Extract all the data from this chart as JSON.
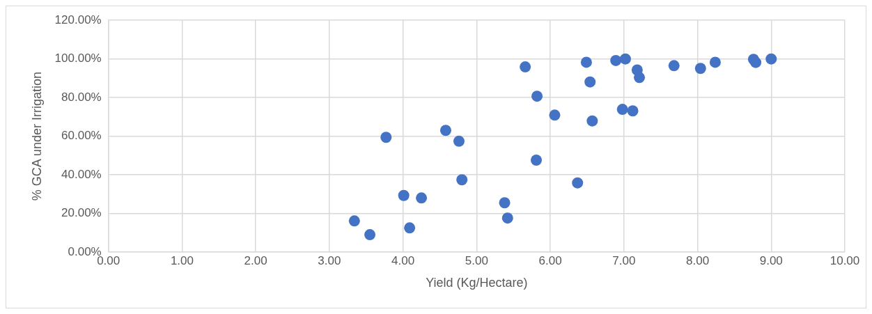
{
  "chart_data": {
    "type": "scatter",
    "xlabel": "Yield (Kg/Hectare)",
    "ylabel": "% GCA under Irrigation",
    "marker": "circle",
    "grid": true,
    "legend": false,
    "x": [
      3.34,
      3.55,
      3.77,
      4.01,
      4.25,
      4.09,
      4.58,
      4.76,
      4.8,
      5.66,
      5.82,
      5.81,
      6.06,
      5.38,
      5.42,
      6.37,
      6.49,
      6.54,
      6.57,
      6.89,
      7.02,
      6.98,
      7.12,
      7.18,
      7.21,
      7.68,
      8.04,
      8.24,
      8.76,
      8.79,
      9.0
    ],
    "series": [
      {
        "color": "#4472c4",
        "values": [
          16.1,
          9.0,
          59.4,
          29.3,
          28.0,
          12.5,
          63.0,
          57.4,
          37.4,
          95.9,
          80.7,
          47.6,
          70.9,
          25.5,
          17.6,
          35.8,
          98.3,
          88.1,
          67.9,
          99.2,
          100.0,
          73.9,
          73.1,
          94.3,
          90.4,
          96.5,
          95.1,
          98.3,
          99.8,
          98.2,
          100.0
        ]
      }
    ],
    "xlim": [
      0,
      10
    ],
    "xticks": [
      {
        "value": 0,
        "label": "0.00"
      },
      {
        "value": 1,
        "label": "1.00"
      },
      {
        "value": 2,
        "label": "2.00"
      },
      {
        "value": 3,
        "label": "3.00"
      },
      {
        "value": 4,
        "label": "4.00"
      },
      {
        "value": 5,
        "label": "5.00"
      },
      {
        "value": 6,
        "label": "6.00"
      },
      {
        "value": 7,
        "label": "7.00"
      },
      {
        "value": 8,
        "label": "8.00"
      },
      {
        "value": 9,
        "label": "9.00"
      },
      {
        "value": 10,
        "label": "10.00"
      }
    ],
    "ylim": [
      0,
      120
    ],
    "yticks": [
      {
        "value": 0,
        "label": "0.00%"
      },
      {
        "value": 20,
        "label": "20.00%"
      },
      {
        "value": 40,
        "label": "40.00%"
      },
      {
        "value": 60,
        "label": "60.00%"
      },
      {
        "value": 80,
        "label": "80.00%"
      },
      {
        "value": 100,
        "label": "100.00%"
      },
      {
        "value": 120,
        "label": "120.00%"
      }
    ]
  }
}
